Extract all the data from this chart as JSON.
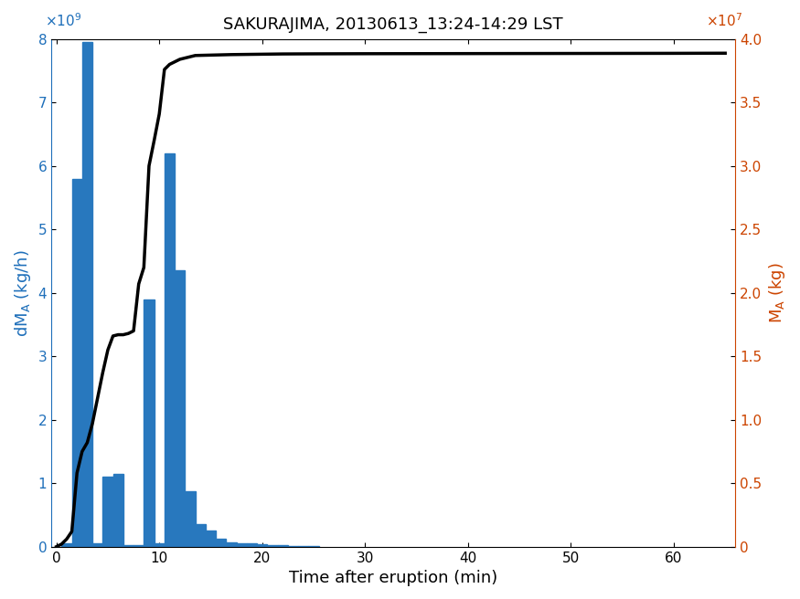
{
  "title": "SAKURAJIMA, 20130613_13:24-14:29 LST",
  "xlabel": "Time after eruption (min)",
  "ylabel_left": "dM_A (kg/h)",
  "ylabel_right": "M_A (kg)",
  "bar_color": "#2878BE",
  "line_color": "#000000",
  "left_axis_color": "#1E6FBA",
  "right_axis_color": "#CC4400",
  "bar_centers": [
    1,
    2,
    3,
    4,
    5,
    6,
    7,
    8,
    9,
    10,
    11,
    12,
    13,
    14,
    15,
    16,
    17,
    18,
    19,
    20,
    21,
    22,
    23,
    24,
    25
  ],
  "bar_heights": [
    50000000.0,
    5800000000.0,
    7950000000.0,
    50000000.0,
    1100000000.0,
    1150000000.0,
    30000000.0,
    20000000.0,
    3900000000.0,
    50000000.0,
    6200000000.0,
    4350000000.0,
    880000000.0,
    350000000.0,
    250000000.0,
    130000000.0,
    70000000.0,
    60000000.0,
    50000000.0,
    40000000.0,
    30000000.0,
    20000000.0,
    15000000.0,
    10000000.0,
    5000000.0
  ],
  "bar_width": 1.0,
  "ylim_left": [
    0,
    8000000000.0
  ],
  "ylim_right": [
    0,
    40000000.0
  ],
  "xlim": [
    -0.5,
    66
  ],
  "xticks": [
    0,
    10,
    20,
    30,
    40,
    50,
    60
  ],
  "yticks_left": [
    0,
    1000000000.0,
    2000000000.0,
    3000000000.0,
    4000000000.0,
    5000000000.0,
    6000000000.0,
    7000000000.0,
    8000000000.0
  ],
  "yticks_right": [
    0,
    5000000.0,
    10000000.0,
    15000000.0,
    20000000.0,
    25000000.0,
    30000000.0,
    35000000.0,
    40000000.0
  ],
  "cumulative_x": [
    0,
    0.5,
    1.0,
    1.5,
    2.0,
    2.5,
    3.0,
    3.5,
    4.0,
    4.5,
    5.0,
    5.5,
    6.0,
    6.5,
    7.0,
    7.5,
    8.0,
    8.5,
    9.0,
    9.5,
    10.0,
    10.5,
    11.0,
    11.5,
    12.0,
    12.5,
    13.0,
    13.5,
    14.0,
    15.0,
    16.0,
    17.0,
    18.0,
    19.0,
    20.0,
    22.0,
    25.0,
    30.0,
    40.0,
    50.0,
    60.0,
    65.0
  ],
  "cumulative_y": [
    0,
    200000.0,
    600000.0,
    1200000.0,
    5800000.0,
    7500000.0,
    8200000.0,
    9700000.0,
    11700000.0,
    13700000.0,
    15500000.0,
    16600000.0,
    16700000.0,
    16700000.0,
    16800000.0,
    17000000.0,
    20700000.0,
    22000000.0,
    30000000.0,
    32000000.0,
    34100000.0,
    37600000.0,
    38000000.0,
    38200000.0,
    38400000.0,
    38500000.0,
    38600000.0,
    38700000.0,
    38710000.0,
    38730000.0,
    38750000.0,
    38770000.0,
    38780000.0,
    38790000.0,
    38800000.0,
    38820000.0,
    38830000.0,
    38840000.0,
    38850000.0,
    38860000.0,
    38870000.0,
    38880000.0
  ],
  "figsize": [
    8.75,
    6.56
  ],
  "dpi": 100
}
